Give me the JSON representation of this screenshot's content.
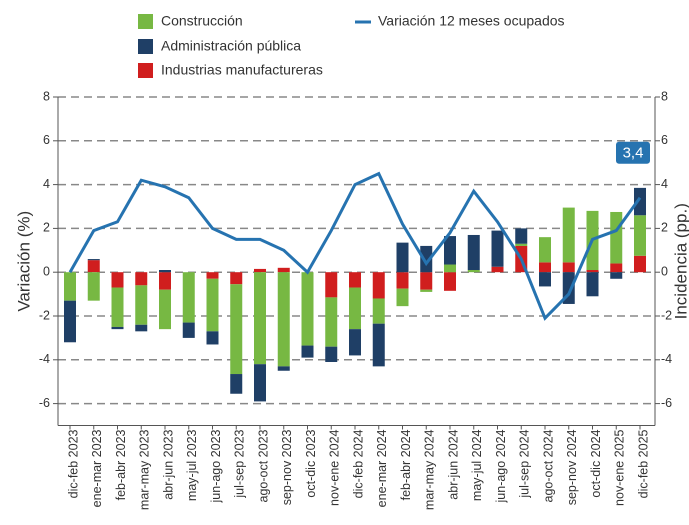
{
  "chart_data": {
    "type": "bar",
    "categories": [
      "dic-feb 2023",
      "ene-mar 2023",
      "feb-abr 2023",
      "mar-may 2023",
      "abr-jun 2023",
      "may-jul 2023",
      "jun-ago 2023",
      "jul-sep 2023",
      "ago-oct 2023",
      "sep-nov 2023",
      "oct-dic 2023",
      "nov-ene 2024",
      "dic-feb 2024",
      "ene-mar 2024",
      "feb-abr 2024",
      "mar-may 2024",
      "abr-jun 2024",
      "may-jul 2024",
      "jun-ago 2024",
      "jul-sep 2024",
      "ago-oct 2024",
      "sep-nov 2024",
      "oct-dic 2024",
      "nov-ene 2025",
      "dic-feb 2025"
    ],
    "series": [
      {
        "name": "Construcción",
        "color": "#77b843",
        "axis": "y2",
        "values": [
          -1.3,
          -1.3,
          -1.8,
          -1.8,
          -1.8,
          -2.3,
          -2.4,
          -4.1,
          -4.2,
          -4.3,
          -3.35,
          -2.25,
          -1.9,
          -1.15,
          -0.8,
          -0.1,
          0.35,
          0.1,
          0,
          0.1,
          1.15,
          2.5,
          2.7,
          2.35,
          1.85
        ]
      },
      {
        "name": "Administración pública",
        "color": "#1f3f66",
        "axis": "y2",
        "values": [
          -1.9,
          0.05,
          -0.1,
          -0.3,
          0.1,
          -0.7,
          -0.6,
          -0.9,
          -1.7,
          -0.2,
          -0.55,
          -0.7,
          -1.2,
          -1.95,
          1.35,
          1.2,
          1.3,
          1.6,
          1.65,
          0.7,
          -0.65,
          -1.45,
          -1.1,
          -0.3,
          1.25
        ]
      },
      {
        "name": "Industrias manufactureras",
        "color": "#d01e1e",
        "axis": "y2",
        "values": [
          0,
          0.55,
          -0.7,
          -0.6,
          -0.8,
          0,
          -0.3,
          -0.55,
          0.15,
          0.2,
          0,
          -1.15,
          -0.7,
          -1.2,
          -0.75,
          -0.8,
          -0.85,
          0,
          0.25,
          1.2,
          0.45,
          0.45,
          0.1,
          0.4,
          0.75
        ]
      },
      {
        "name": "Variación 12 meses ocupados",
        "color": "#2673b0",
        "type": "line",
        "values": [
          0,
          1.9,
          2.3,
          4.2,
          3.9,
          3.4,
          2.0,
          1.5,
          1.5,
          1.0,
          0,
          1.9,
          4.0,
          4.5,
          2.2,
          0.4,
          1.8,
          3.7,
          2.3,
          0.6,
          -2.1,
          -1.0,
          1.5,
          1.9,
          3.4
        ]
      }
    ],
    "ylabel": "Variación (%)",
    "y2label": "Incidencia (pp.)",
    "ylim": [
      -7,
      8
    ],
    "yticks": [
      -6,
      -4,
      -2,
      0,
      2,
      4,
      6,
      8
    ],
    "y2lim": [
      -7,
      8
    ],
    "y2ticks": [
      -6,
      -4,
      -2,
      0,
      2,
      4,
      6,
      8
    ],
    "grid": true,
    "annotations": [
      {
        "text": "3,4"
      }
    ]
  }
}
